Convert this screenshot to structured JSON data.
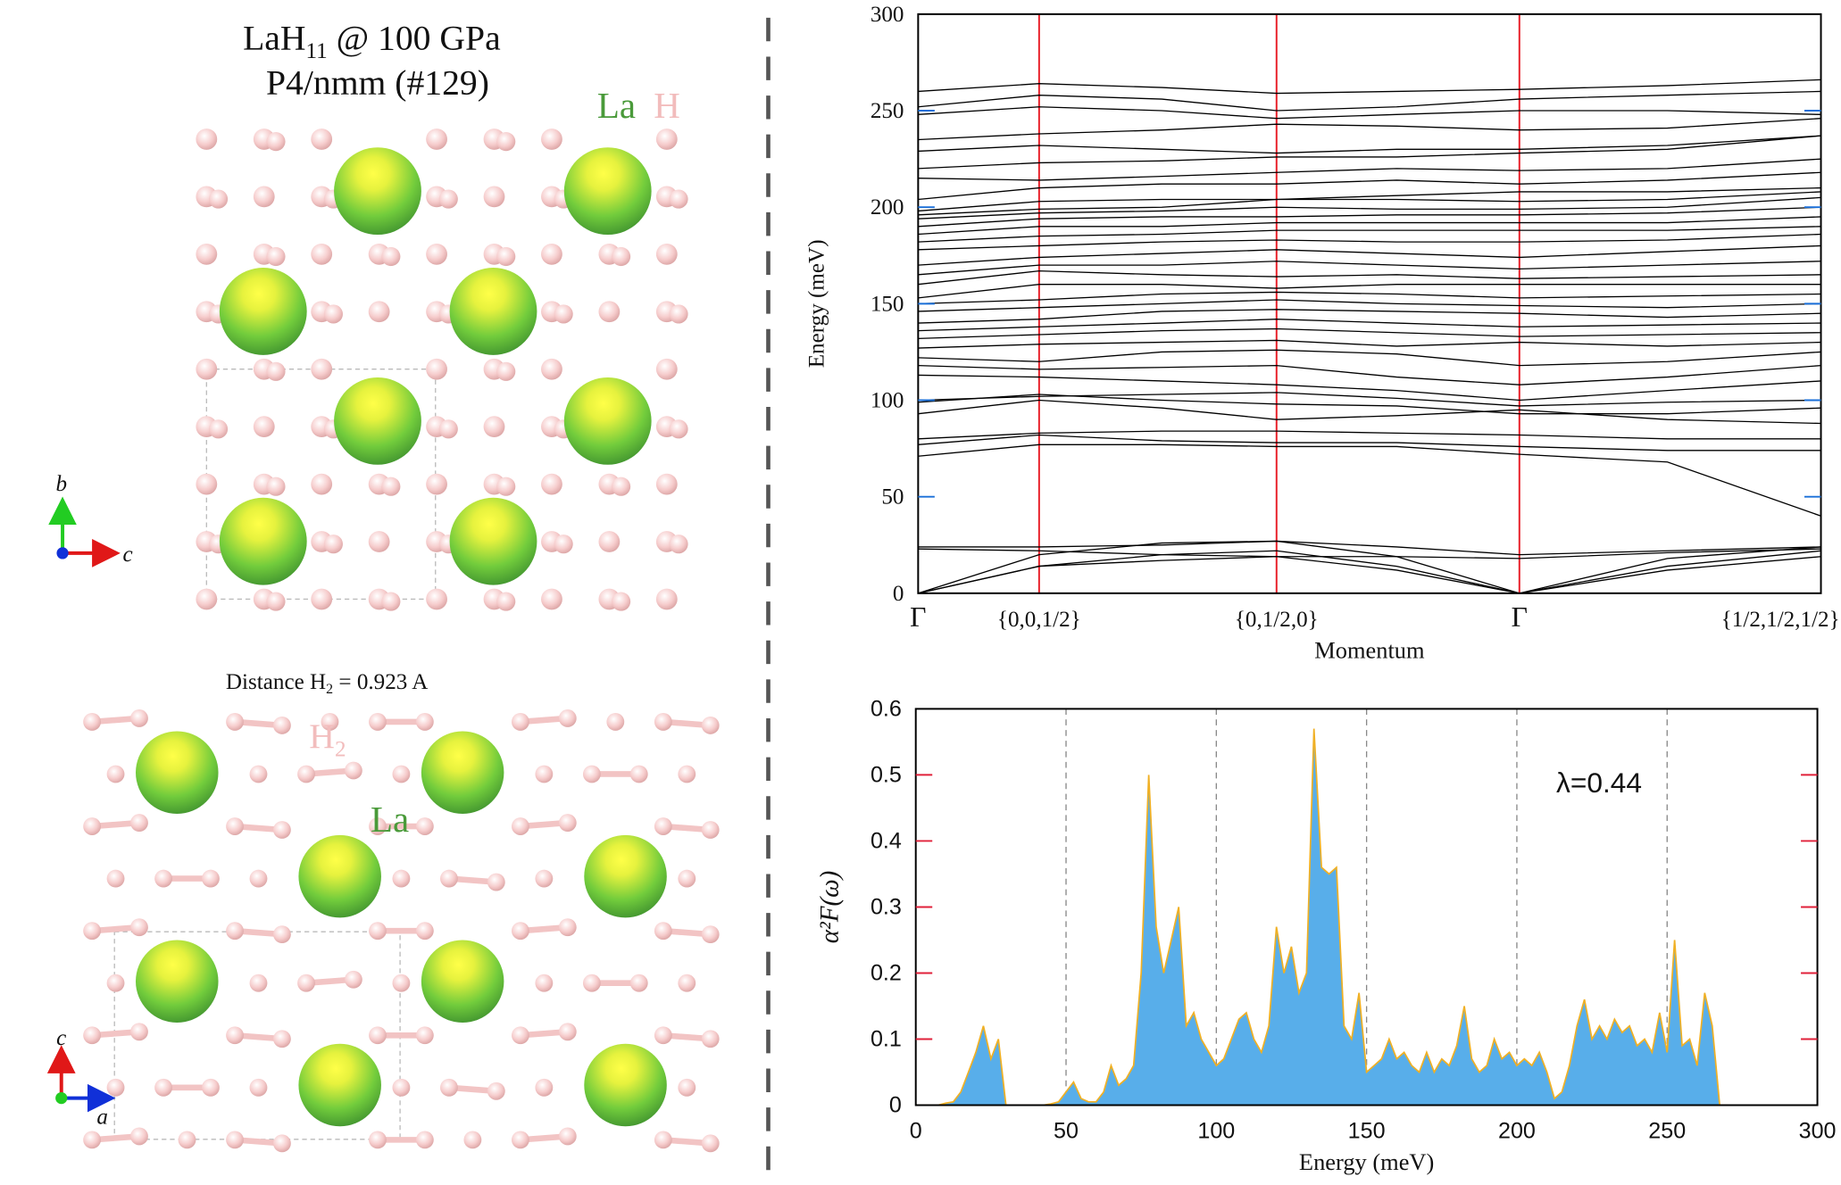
{
  "panels": {
    "top": {
      "title_parts": [
        "LaH",
        "11",
        " @ 100 GPa"
      ],
      "subtitle": "P4/nmm (#129)",
      "legend": [
        "La",
        "H"
      ],
      "axes": [
        "b",
        "c"
      ]
    },
    "bottom": {
      "caption_parts": [
        "Distance H",
        "2",
        " = 0.923 A"
      ],
      "h2_parts": [
        "H",
        "2"
      ],
      "la": "La",
      "axes": [
        "c",
        "a"
      ]
    }
  },
  "chart_data": [
    {
      "type": "line",
      "xlabel": "Momentum",
      "ylabel": "Energy (meV)",
      "xlim": [
        0,
        1
      ],
      "ylim": [
        0,
        300
      ],
      "yticks": [
        0,
        50,
        100,
        150,
        200,
        250,
        300
      ],
      "xticks": [
        {
          "value": 0,
          "label": "Γ"
        },
        {
          "value": 0.134,
          "label": "{0,0,1/2}"
        },
        {
          "value": 0.397,
          "label": "{0,1/2,0}"
        },
        {
          "value": 0.666,
          "label": "Γ"
        },
        {
          "value": 1,
          "label": "{1/2,1/2,1/2}"
        }
      ],
      "xgrid": true,
      "xgrid_color": "#e8202a",
      "ytick_color": "#1a6fd8",
      "color": "#000000",
      "x": [
        0,
        0.134,
        0.27,
        0.397,
        0.53,
        0.666,
        0.83,
        1.0
      ],
      "series": [
        {
          "values": [
            0,
            14,
            17,
            19,
            12,
            0,
            12,
            19
          ]
        },
        {
          "values": [
            0,
            14,
            20,
            22,
            14,
            0,
            14,
            22
          ]
        },
        {
          "values": [
            0,
            20,
            26,
            27,
            19,
            0,
            18,
            24
          ]
        },
        {
          "values": [
            23,
            22,
            20,
            19,
            19,
            18,
            21,
            23
          ]
        },
        {
          "values": [
            24,
            24,
            25,
            27,
            24,
            20,
            22,
            24
          ]
        },
        {
          "values": [
            71,
            77,
            77,
            76,
            76,
            72,
            68,
            40
          ]
        },
        {
          "values": [
            77,
            82,
            79,
            78,
            78,
            76,
            74,
            74
          ]
        },
        {
          "values": [
            80,
            83,
            84,
            84,
            83,
            82,
            80,
            80
          ]
        },
        {
          "values": [
            93,
            100,
            96,
            90,
            92,
            95,
            90,
            88
          ]
        },
        {
          "values": [
            99,
            103,
            100,
            98,
            97,
            93,
            93,
            96
          ]
        },
        {
          "values": [
            100,
            102,
            103,
            104,
            101,
            97,
            99,
            100
          ]
        },
        {
          "values": [
            113,
            112,
            110,
            108,
            105,
            100,
            105,
            110
          ]
        },
        {
          "values": [
            118,
            116,
            117,
            118,
            112,
            108,
            112,
            118
          ]
        },
        {
          "values": [
            122,
            120,
            125,
            126,
            124,
            118,
            120,
            125
          ]
        },
        {
          "values": [
            127,
            129,
            130,
            131,
            128,
            130,
            128,
            130
          ]
        },
        {
          "values": [
            132,
            134,
            136,
            137,
            135,
            133,
            134,
            135
          ]
        },
        {
          "values": [
            136,
            138,
            140,
            142,
            140,
            138,
            139,
            140
          ]
        },
        {
          "values": [
            140,
            142,
            146,
            147,
            146,
            145,
            143,
            145
          ]
        },
        {
          "values": [
            146,
            148,
            150,
            152,
            150,
            149,
            148,
            150
          ]
        },
        {
          "values": [
            150,
            152,
            155,
            156,
            155,
            153,
            154,
            155
          ]
        },
        {
          "values": [
            153,
            160,
            160,
            158,
            160,
            160,
            160,
            160
          ]
        },
        {
          "values": [
            160,
            167,
            165,
            164,
            165,
            163,
            164,
            165
          ]
        },
        {
          "values": [
            165,
            170,
            170,
            172,
            170,
            168,
            170,
            172
          ]
        },
        {
          "values": [
            170,
            174,
            176,
            178,
            176,
            174,
            177,
            180
          ]
        },
        {
          "values": [
            178,
            180,
            182,
            183,
            182,
            182,
            183,
            186
          ]
        },
        {
          "values": [
            182,
            185,
            186,
            188,
            188,
            188,
            188,
            190
          ]
        },
        {
          "values": [
            186,
            190,
            190,
            192,
            192,
            192,
            192,
            195
          ]
        },
        {
          "values": [
            190,
            194,
            195,
            195,
            196,
            196,
            197,
            200
          ]
        },
        {
          "values": [
            194,
            197,
            198,
            200,
            199,
            199,
            200,
            205
          ]
        },
        {
          "values": [
            196,
            199,
            200,
            204,
            204,
            203,
            204,
            208
          ]
        },
        {
          "values": [
            198,
            203,
            204,
            204,
            206,
            208,
            208,
            210
          ]
        },
        {
          "values": [
            204,
            210,
            212,
            212,
            214,
            212,
            214,
            218
          ]
        },
        {
          "values": [
            215,
            214,
            216,
            218,
            220,
            219,
            220,
            225
          ]
        },
        {
          "values": [
            220,
            223,
            224,
            226,
            226,
            228,
            230,
            237
          ]
        },
        {
          "values": [
            229,
            232,
            230,
            228,
            230,
            230,
            232,
            237
          ]
        },
        {
          "values": [
            235,
            238,
            240,
            243,
            242,
            240,
            241,
            246
          ]
        },
        {
          "values": [
            248,
            252,
            250,
            246,
            248,
            250,
            250,
            248
          ]
        },
        {
          "values": [
            252,
            258,
            256,
            250,
            252,
            256,
            258,
            260
          ]
        },
        {
          "values": [
            260,
            264,
            262,
            259,
            260,
            261,
            263,
            266
          ]
        }
      ]
    },
    {
      "type": "area",
      "xlabel": "Energy (meV)",
      "ylabel": "α²F(ω)",
      "annotation": "λ=0.44",
      "xlim": [
        0,
        300
      ],
      "ylim": [
        0,
        0.6
      ],
      "xticks": [
        0,
        50,
        100,
        150,
        200,
        250,
        300
      ],
      "yticks": [
        0,
        0.1,
        0.2,
        0.3,
        0.4,
        0.5,
        0.6
      ],
      "xgrid": true,
      "xgrid_color": "#888888",
      "xgrid_style": "dashed",
      "ytick_color": "#e0203a",
      "color": "#58aeea",
      "line_color": "#f0b024",
      "x": [
        0,
        2.5,
        5,
        7.5,
        10,
        12.5,
        15,
        17.5,
        20,
        22.5,
        25,
        27.5,
        30,
        32.5,
        35,
        37.5,
        40,
        42.5,
        45,
        47.5,
        50,
        52.5,
        55,
        57.5,
        60,
        62.5,
        65,
        67.5,
        70,
        72.5,
        75,
        77.5,
        80,
        82.5,
        85,
        87.5,
        90,
        92.5,
        95,
        97.5,
        100,
        102.5,
        105,
        107.5,
        110,
        112.5,
        115,
        117.5,
        120,
        122.5,
        125,
        127.5,
        130,
        132.5,
        135,
        137.5,
        140,
        142.5,
        145,
        147.5,
        150,
        152.5,
        155,
        157.5,
        160,
        162.5,
        165,
        167.5,
        170,
        172.5,
        175,
        177.5,
        180,
        182.5,
        185,
        187.5,
        190,
        192.5,
        195,
        197.5,
        200,
        202.5,
        205,
        207.5,
        210,
        212.5,
        215,
        217.5,
        220,
        222.5,
        225,
        227.5,
        230,
        232.5,
        235,
        237.5,
        240,
        242.5,
        245,
        247.5,
        250,
        252.5,
        255,
        257.5,
        260,
        262.5,
        265,
        267.5,
        270
      ],
      "values": [
        0,
        0,
        0,
        0,
        0.003,
        0.005,
        0.02,
        0.05,
        0.08,
        0.12,
        0.07,
        0.1,
        0,
        0,
        0,
        0,
        0,
        0,
        0.002,
        0.005,
        0.02,
        0.035,
        0.01,
        0.005,
        0.005,
        0.02,
        0.06,
        0.03,
        0.04,
        0.06,
        0.2,
        0.5,
        0.27,
        0.2,
        0.25,
        0.3,
        0.12,
        0.14,
        0.1,
        0.08,
        0.06,
        0.07,
        0.1,
        0.13,
        0.14,
        0.1,
        0.08,
        0.12,
        0.27,
        0.2,
        0.24,
        0.17,
        0.2,
        0.57,
        0.36,
        0.35,
        0.36,
        0.12,
        0.1,
        0.17,
        0.05,
        0.06,
        0.07,
        0.1,
        0.07,
        0.08,
        0.06,
        0.05,
        0.08,
        0.05,
        0.07,
        0.06,
        0.09,
        0.15,
        0.07,
        0.05,
        0.06,
        0.1,
        0.07,
        0.08,
        0.06,
        0.07,
        0.06,
        0.08,
        0.05,
        0.01,
        0.02,
        0.06,
        0.12,
        0.16,
        0.1,
        0.12,
        0.1,
        0.13,
        0.11,
        0.12,
        0.09,
        0.1,
        0.08,
        0.14,
        0.08,
        0.25,
        0.09,
        0.1,
        0.06,
        0.17,
        0.12,
        0,
        0
      ]
    }
  ]
}
